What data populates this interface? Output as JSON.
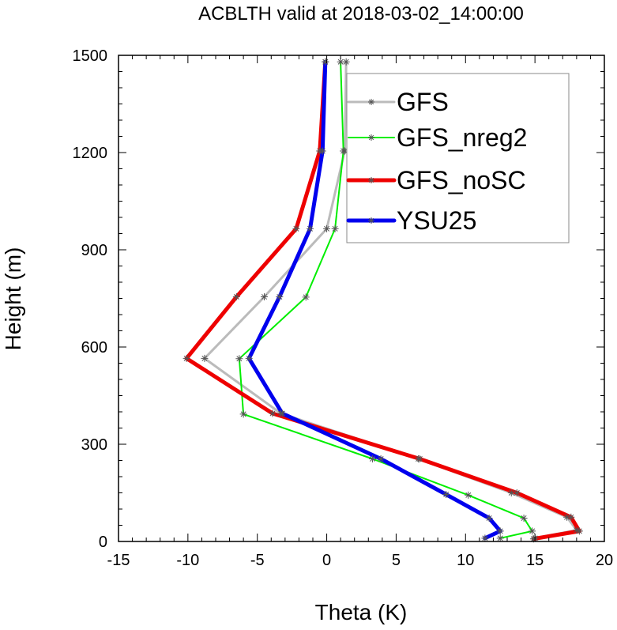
{
  "chart_data": {
    "type": "line",
    "title": "ACBLTH valid at 2018-03-02_14:00:00",
    "xlabel": "Theta (K)",
    "ylabel": "Height (m)",
    "xlim": [
      -15,
      20
    ],
    "ylim": [
      0,
      1500
    ],
    "xticks": [
      -15,
      -10,
      -5,
      0,
      5,
      10,
      15,
      20
    ],
    "yticks": [
      0,
      300,
      600,
      900,
      1200,
      1500
    ],
    "xtick_labels": [
      "-15",
      "-10",
      "-5",
      "0",
      "5",
      "10",
      "15",
      "20"
    ],
    "ytick_labels": [
      "0",
      "300",
      "600",
      "900",
      "1200",
      "1500"
    ],
    "legend_position": "top-right",
    "grid": false,
    "series": [
      {
        "name": "GFS",
        "color": "#bbbbbb",
        "width": 3,
        "markers": true,
        "points": [
          [
            15.0,
            10
          ],
          [
            18.0,
            35
          ],
          [
            17.3,
            75
          ],
          [
            13.3,
            150
          ],
          [
            6.6,
            255
          ],
          [
            -3.3,
            395
          ],
          [
            -8.8,
            565
          ],
          [
            -4.5,
            755
          ],
          [
            0.0,
            965
          ],
          [
            1.3,
            1205
          ],
          [
            1.4,
            1480
          ]
        ]
      },
      {
        "name": "GFS_nreg2",
        "color": "#00ee00",
        "width": 2,
        "markers": true,
        "points": [
          [
            12.5,
            10
          ],
          [
            14.8,
            32
          ],
          [
            14.2,
            72
          ],
          [
            10.2,
            143
          ],
          [
            3.3,
            255
          ],
          [
            -6.0,
            393
          ],
          [
            -6.3,
            564
          ],
          [
            -1.5,
            754
          ],
          [
            0.6,
            965
          ],
          [
            1.2,
            1205
          ],
          [
            1.0,
            1480
          ]
        ]
      },
      {
        "name": "GFS_noSC",
        "color": "#ee0000",
        "width": 5,
        "markers": true,
        "points": [
          [
            14.9,
            8
          ],
          [
            18.2,
            32
          ],
          [
            17.6,
            75
          ],
          [
            13.7,
            150
          ],
          [
            6.7,
            255
          ],
          [
            -3.9,
            395
          ],
          [
            -10.1,
            565
          ],
          [
            -6.5,
            755
          ],
          [
            -2.2,
            965
          ],
          [
            -0.5,
            1205
          ],
          [
            -0.1,
            1480
          ]
        ]
      },
      {
        "name": "YSU25",
        "color": "#0000ee",
        "width": 5,
        "markers": true,
        "points": [
          [
            11.4,
            10
          ],
          [
            12.5,
            32
          ],
          [
            11.7,
            72
          ],
          [
            8.6,
            145
          ],
          [
            3.9,
            255
          ],
          [
            -3.2,
            395
          ],
          [
            -5.6,
            565
          ],
          [
            -3.4,
            755
          ],
          [
            -1.2,
            965
          ],
          [
            -0.3,
            1205
          ],
          [
            -0.1,
            1480
          ]
        ]
      }
    ]
  }
}
